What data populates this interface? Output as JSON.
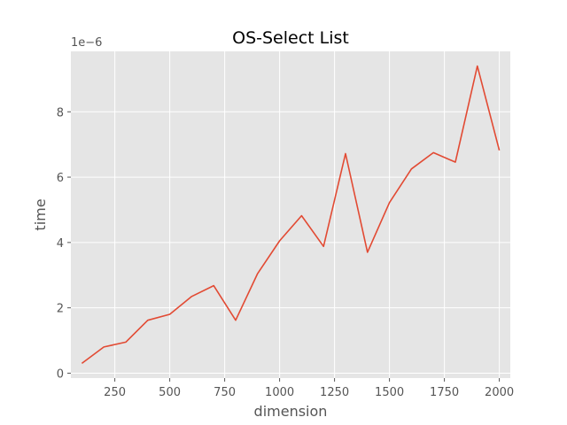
{
  "chart_data": {
    "type": "line",
    "title": "OS-Select List",
    "xlabel": "dimension",
    "ylabel": "time",
    "y_offset_label": "1e−6",
    "y_scale": 1e-06,
    "xlim": [
      50,
      2050
    ],
    "ylim": [
      -0.15,
      9.85
    ],
    "x_ticks": [
      250,
      500,
      750,
      1000,
      1250,
      1500,
      1750,
      2000
    ],
    "x_tick_labels": [
      "250",
      "500",
      "750",
      "1000",
      "1250",
      "1500",
      "1750",
      "2000"
    ],
    "y_ticks": [
      0,
      2,
      4,
      6,
      8
    ],
    "y_tick_labels": [
      "0",
      "2",
      "4",
      "6",
      "8"
    ],
    "grid": true,
    "background_color": "#e5e5e5",
    "line_color": "#e24a33",
    "series": [
      {
        "x": [
          100,
          200,
          300,
          400,
          500,
          600,
          700,
          800,
          900,
          1000,
          1100,
          1200,
          1300,
          1400,
          1500,
          1600,
          1700,
          1800,
          1900,
          2000
        ],
        "values": [
          0.3,
          0.8,
          0.95,
          1.62,
          1.8,
          2.35,
          2.68,
          1.62,
          3.05,
          4.05,
          4.82,
          3.88,
          6.72,
          3.7,
          5.22,
          6.25,
          6.75,
          6.46,
          9.4,
          6.82
        ]
      }
    ]
  }
}
